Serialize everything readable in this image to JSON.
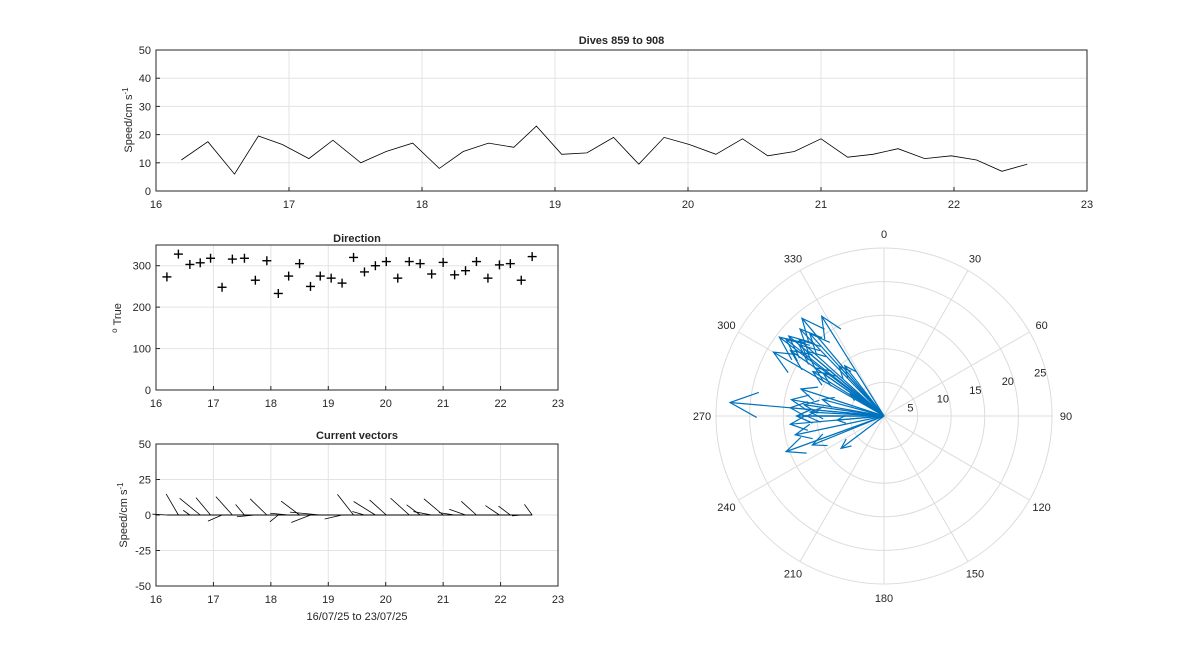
{
  "chart_data": [
    {
      "id": "speed",
      "type": "line",
      "title": "Dives 859 to 908",
      "ylabel_main": "Speed/cm s",
      "ylabel_sup": "-1",
      "xlabel": "",
      "xlim": [
        16,
        23
      ],
      "ylim": [
        0,
        50
      ],
      "xticks": [
        16,
        17,
        18,
        19,
        20,
        21,
        22,
        23
      ],
      "yticks": [
        0,
        10,
        20,
        30,
        40,
        50
      ],
      "grid": true,
      "line_color": "#000000",
      "x": [
        16.19,
        16.39,
        16.59,
        16.77,
        16.95,
        17.15,
        17.33,
        17.54,
        17.73,
        17.93,
        18.13,
        18.31,
        18.5,
        18.69,
        18.86,
        19.05,
        19.24,
        19.44,
        19.63,
        19.82,
        20.01,
        20.21,
        20.41,
        20.6,
        20.8,
        21.0,
        21.2,
        21.39,
        21.58,
        21.78,
        21.98,
        22.17,
        22.36,
        22.55
      ],
      "y": [
        11,
        17.5,
        6,
        19.5,
        16.5,
        11.5,
        18,
        10,
        14,
        17,
        8,
        14,
        17,
        15.5,
        23,
        13,
        13.5,
        19,
        9.5,
        19,
        16.5,
        13,
        18.5,
        12.5,
        14,
        18.5,
        12,
        13,
        15,
        11.5,
        12.5,
        11,
        7,
        9.5
      ]
    },
    {
      "id": "direction",
      "type": "scatter",
      "title": "Direction",
      "ylabel_main": "True",
      "ylabel_sup": "o",
      "xlabel": "",
      "xlim": [
        16,
        23
      ],
      "ylim": [
        0,
        350
      ],
      "xticks": [
        16,
        17,
        18,
        19,
        20,
        21,
        22,
        23
      ],
      "yticks": [
        0,
        100,
        200,
        300
      ],
      "grid": true,
      "marker": "+",
      "marker_color": "#000000",
      "x": [
        16.19,
        16.39,
        16.59,
        16.77,
        16.95,
        17.15,
        17.33,
        17.54,
        17.73,
        17.93,
        18.13,
        18.31,
        18.5,
        18.69,
        18.86,
        19.05,
        19.24,
        19.44,
        19.63,
        19.82,
        20.01,
        20.21,
        20.41,
        20.6,
        20.8,
        21.0,
        21.2,
        21.39,
        21.58,
        21.78,
        21.98,
        22.17,
        22.36,
        22.55
      ],
      "y": [
        273,
        328,
        303,
        307,
        318,
        248,
        316,
        318,
        265,
        312,
        233,
        275,
        305,
        250,
        275,
        270,
        258,
        320,
        285,
        300,
        310,
        270,
        310,
        305,
        280,
        308,
        278,
        288,
        310,
        270,
        302,
        305,
        265,
        322
      ]
    },
    {
      "id": "vectors",
      "type": "line",
      "title": "Current vectors",
      "ylabel_main": "Speed/cm s",
      "ylabel_sup": "-1",
      "xlabel": "16/07/25 to 23/07/25",
      "xlim": [
        16,
        23
      ],
      "ylim": [
        -50,
        50
      ],
      "xticks": [
        16,
        17,
        18,
        19,
        20,
        21,
        22,
        23
      ],
      "yticks": [
        -50,
        -25,
        0,
        25,
        50
      ],
      "grid": true,
      "line_color": "#000000",
      "x_scale_days_per_cm_s": 0.023
    },
    {
      "id": "polar",
      "type": "scatter",
      "title": "",
      "angle_zero": "top",
      "angle_direction": "clockwise",
      "angle_ticks": [
        0,
        30,
        60,
        90,
        120,
        150,
        180,
        210,
        240,
        270,
        300,
        330
      ],
      "r_ticks": [
        5,
        10,
        15,
        20,
        25
      ],
      "rlim": [
        0,
        25
      ],
      "arrow_color": "#0072BD",
      "grid": true
    }
  ]
}
